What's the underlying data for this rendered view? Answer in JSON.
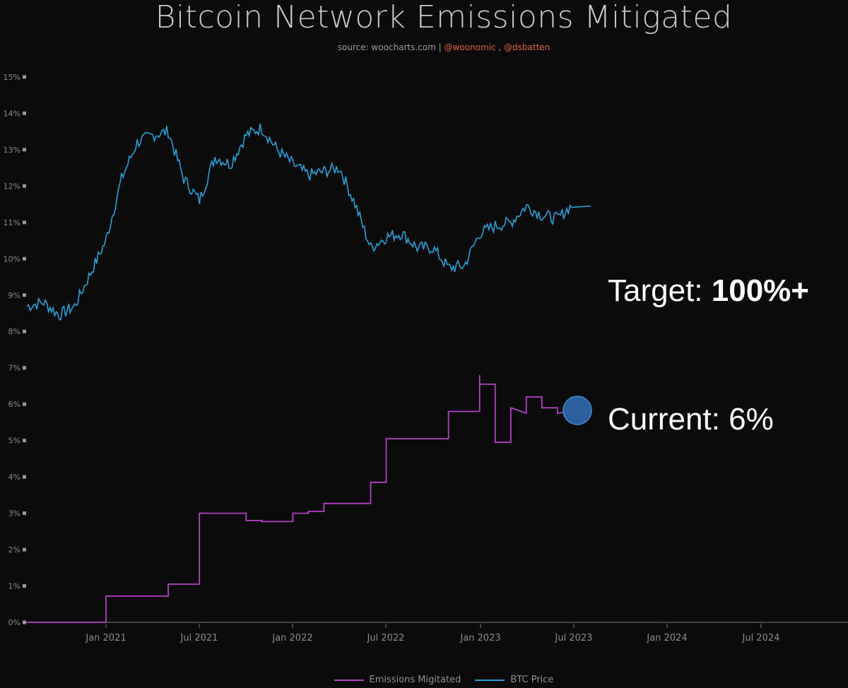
{
  "header": {
    "title": "Bitcoin Network Emissions Mitigated",
    "source_prefix": "source: woocharts.com | ",
    "handle1": "@woonomic",
    "separator": " , ",
    "handle2": "@dsbatten"
  },
  "annotations": {
    "target_label": "Target: ",
    "target_value": "100%+",
    "current_label": "Current: 6%"
  },
  "legend": {
    "items": [
      {
        "label": "Emissions Migitated",
        "color": "#b342c4"
      },
      {
        "label": "BTC Price",
        "color": "#2a9fd6"
      }
    ]
  },
  "colors": {
    "background": "#0b0b0b",
    "emissions": "#b342c4",
    "btc": "#2a9fd6",
    "marker": "#2c5f9e"
  },
  "chart_data": {
    "type": "line",
    "title": "Bitcoin Network Emissions Mitigated",
    "subtitle": "source: woocharts.com | @woonomic , @dsbatten",
    "xlabel": "",
    "ylabel": "",
    "ylim": [
      0,
      15
    ],
    "yticks": [
      "0%",
      "1%",
      "2%",
      "3%",
      "4%",
      "5%",
      "6%",
      "7%",
      "8%",
      "9%",
      "10%",
      "11%",
      "12%",
      "13%",
      "14%",
      "15%"
    ],
    "xticks": [
      "Jan 2021",
      "Jul 2021",
      "Jan 2022",
      "Jul 2022",
      "Jan 2023",
      "Jul 2023",
      "Jan 2024",
      "Jul 2024"
    ],
    "grid": false,
    "legend_position": "bottom",
    "series": [
      {
        "name": "Emissions Migitated",
        "step": true,
        "points": [
          [
            "2020-08",
            0.0
          ],
          [
            "2021-01",
            0.0
          ],
          [
            "2021-01",
            0.72
          ],
          [
            "2021-05",
            0.72
          ],
          [
            "2021-05",
            1.05
          ],
          [
            "2021-07",
            1.05
          ],
          [
            "2021-07",
            3.0
          ],
          [
            "2021-10",
            3.0
          ],
          [
            "2021-10",
            2.8
          ],
          [
            "2021-11",
            2.8
          ],
          [
            "2021-11",
            2.77
          ],
          [
            "2022-01",
            2.77
          ],
          [
            "2022-01",
            3.0
          ],
          [
            "2022-02",
            3.0
          ],
          [
            "2022-02",
            3.05
          ],
          [
            "2022-03",
            3.05
          ],
          [
            "2022-03",
            3.27
          ],
          [
            "2022-06",
            3.27
          ],
          [
            "2022-06",
            3.85
          ],
          [
            "2022-07",
            3.85
          ],
          [
            "2022-07",
            5.05
          ],
          [
            "2022-11",
            5.05
          ],
          [
            "2022-11",
            5.8
          ],
          [
            "2023-01",
            5.8
          ],
          [
            "2023-01",
            6.8
          ],
          [
            "2023-01",
            6.55
          ],
          [
            "2023-02",
            6.55
          ],
          [
            "2023-02",
            4.95
          ],
          [
            "2023-03",
            4.95
          ],
          [
            "2023-03",
            5.9
          ],
          [
            "2023-04",
            5.75
          ],
          [
            "2023-04",
            5.8
          ],
          [
            "2023-04",
            6.2
          ],
          [
            "2023-05",
            6.2
          ],
          [
            "2023-05",
            5.9
          ],
          [
            "2023-06",
            5.9
          ],
          [
            "2023-06",
            5.75
          ],
          [
            "2023-07",
            5.8
          ]
        ]
      },
      {
        "name": "BTC Price",
        "note": "plotted on same % axis (scaled)",
        "points": [
          [
            "2020-08",
            8.7
          ],
          [
            "2020-09",
            8.8
          ],
          [
            "2020-10",
            8.45
          ],
          [
            "2020-11",
            8.7
          ],
          [
            "2020-12",
            9.6
          ],
          [
            "2021-01",
            10.5
          ],
          [
            "2021-02",
            12.2
          ],
          [
            "2021-03",
            13.2
          ],
          [
            "2021-04",
            13.4
          ],
          [
            "2021-05",
            13.5
          ],
          [
            "2021-06",
            12.2
          ],
          [
            "2021-07",
            11.6
          ],
          [
            "2021-08",
            12.8
          ],
          [
            "2021-09",
            12.6
          ],
          [
            "2021-10",
            13.4
          ],
          [
            "2021-11",
            13.6
          ],
          [
            "2021-12",
            13.0
          ],
          [
            "2022-01",
            12.6
          ],
          [
            "2022-02",
            12.3
          ],
          [
            "2022-03",
            12.4
          ],
          [
            "2022-04",
            12.5
          ],
          [
            "2022-05",
            11.5
          ],
          [
            "2022-06",
            10.3
          ],
          [
            "2022-07",
            10.6
          ],
          [
            "2022-08",
            10.7
          ],
          [
            "2022-09",
            10.3
          ],
          [
            "2022-10",
            10.3
          ],
          [
            "2022-11",
            9.75
          ],
          [
            "2022-12",
            9.8
          ],
          [
            "2023-01",
            10.7
          ],
          [
            "2023-02",
            10.9
          ],
          [
            "2023-03",
            11.0
          ],
          [
            "2023-04",
            11.45
          ],
          [
            "2023-05",
            11.2
          ],
          [
            "2023-06",
            11.1
          ],
          [
            "2023-07",
            11.5
          ]
        ]
      }
    ]
  }
}
